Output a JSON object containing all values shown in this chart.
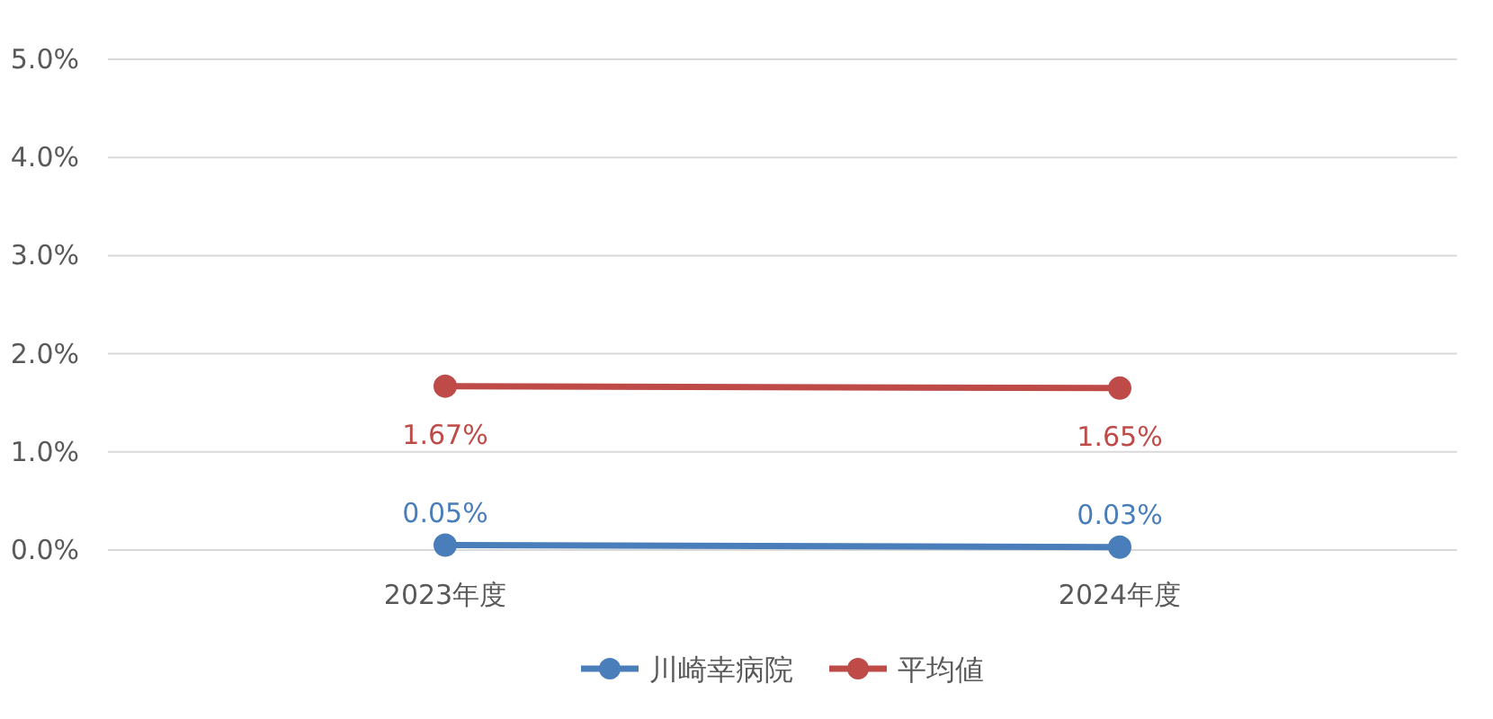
{
  "chart_data": {
    "type": "line",
    "categories": [
      "2023年度",
      "2024年度"
    ],
    "series": [
      {
        "name": "川崎幸病院",
        "color": "#4a7ebb",
        "values": [
          0.05,
          0.03
        ],
        "value_labels": [
          "0.05%",
          "0.03%"
        ]
      },
      {
        "name": "平均値",
        "color": "#be4b48",
        "values": [
          1.67,
          1.65
        ],
        "value_labels": [
          "1.67%",
          "1.65%"
        ]
      }
    ],
    "ylim": [
      0,
      5
    ],
    "yticks": [
      {
        "value": 0,
        "label": "0.0%"
      },
      {
        "value": 1,
        "label": "1.0%"
      },
      {
        "value": 2,
        "label": "2.0%"
      },
      {
        "value": 3,
        "label": "3.0%"
      },
      {
        "value": 4,
        "label": "4.0%"
      },
      {
        "value": 5,
        "label": "5.0%"
      }
    ],
    "grid": "y",
    "legend": "bottom",
    "marker": "circle"
  }
}
